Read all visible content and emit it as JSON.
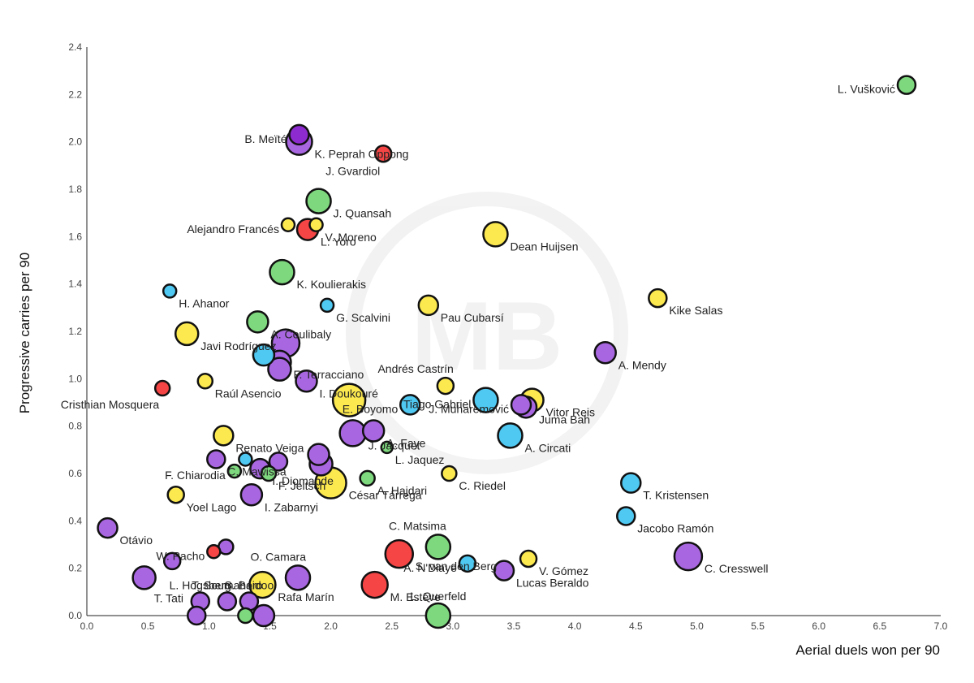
{
  "chart_data": {
    "type": "scatter",
    "xlabel": "Aerial duels won per 90",
    "ylabel": "Progressive carries per 90",
    "xlim": [
      0,
      7
    ],
    "ylim": [
      0,
      2.4
    ],
    "xticks": [
      "0.0",
      "0.5",
      "1.0",
      "1.5",
      "2.0",
      "2.5",
      "3.0",
      "3.5",
      "4.0",
      "4.5",
      "5.0",
      "5.5",
      "6.0",
      "6.5",
      "7.0"
    ],
    "yticks": [
      "0.0",
      "0.2",
      "0.4",
      "0.6",
      "0.8",
      "1.0",
      "1.2",
      "1.4",
      "1.6",
      "1.8",
      "2.0",
      "2.2",
      "2.4"
    ],
    "grid": false,
    "watermark": "MB",
    "colors": {
      "green": "#7ed87e",
      "purple": "#a867e0",
      "yellow": "#fce94f",
      "blue": "#4fc8f2",
      "red": "#f54545",
      "darkpurple": "#8e2bd0"
    },
    "points": [
      {
        "name": "L. Vušković",
        "x": 6.72,
        "y": 2.24,
        "size": 11,
        "color": "green",
        "label_pos": "left"
      },
      {
        "name": "B. Meïté",
        "x": 1.74,
        "y": 2.03,
        "size": 12,
        "color": "darkpurple",
        "label_pos": "left"
      },
      {
        "name": "K. Peprah Oppong",
        "x": 1.74,
        "y": 2.0,
        "size": 16,
        "color": "purple",
        "label_pos": "right"
      },
      {
        "name": "J. Gvardiol",
        "x": 2.43,
        "y": 1.95,
        "size": 10,
        "color": "red",
        "label_pos": "below-left"
      },
      {
        "name": "J. Quansah",
        "x": 1.9,
        "y": 1.75,
        "size": 15,
        "color": "green",
        "label_pos": "right"
      },
      {
        "name": "Alejandro Francés",
        "x": 1.65,
        "y": 1.65,
        "size": 8,
        "color": "yellow",
        "label_pos": "left"
      },
      {
        "name": "V. Moreno",
        "x": 1.88,
        "y": 1.65,
        "size": 8,
        "color": "yellow",
        "label_pos": "right"
      },
      {
        "name": "L. Yoro",
        "x": 1.81,
        "y": 1.63,
        "size": 13,
        "color": "red",
        "label_pos": "right"
      },
      {
        "name": "Dean Huijsen",
        "x": 3.35,
        "y": 1.61,
        "size": 15,
        "color": "yellow",
        "label_pos": "right"
      },
      {
        "name": "K. Koulierakis",
        "x": 1.6,
        "y": 1.45,
        "size": 15,
        "color": "green",
        "label_pos": "right"
      },
      {
        "name": "H. Ahanor",
        "x": 0.68,
        "y": 1.37,
        "size": 8,
        "color": "blue",
        "label_pos": "right"
      },
      {
        "name": "Kike Salas",
        "x": 4.68,
        "y": 1.34,
        "size": 11,
        "color": "yellow",
        "label_pos": "right"
      },
      {
        "name": "G. Scalvini",
        "x": 1.97,
        "y": 1.31,
        "size": 8,
        "color": "blue",
        "label_pos": "right"
      },
      {
        "name": "Pau Cubarsí",
        "x": 2.8,
        "y": 1.31,
        "size": 12,
        "color": "yellow",
        "label_pos": "right"
      },
      {
        "name": "A. Coulibaly",
        "x": 1.4,
        "y": 1.24,
        "size": 13,
        "color": "green",
        "label_pos": "right"
      },
      {
        "name": "Javi Rodríguez",
        "x": 0.82,
        "y": 1.19,
        "size": 14,
        "color": "yellow",
        "label_pos": "right"
      },
      {
        "name": "",
        "x": 1.63,
        "y": 1.15,
        "size": 17,
        "color": "purple",
        "label_pos": "none"
      },
      {
        "name": "",
        "x": 1.45,
        "y": 1.1,
        "size": 13,
        "color": "blue",
        "label_pos": "none"
      },
      {
        "name": "A. Mendy",
        "x": 4.25,
        "y": 1.11,
        "size": 13,
        "color": "purple",
        "label_pos": "right"
      },
      {
        "name": "F. Terracciano",
        "x": 1.58,
        "y": 1.07,
        "size": 14,
        "color": "purple",
        "label_pos": "right"
      },
      {
        "name": "",
        "x": 1.58,
        "y": 1.04,
        "size": 14,
        "color": "purple",
        "label_pos": "none"
      },
      {
        "name": "Raúl Asencio",
        "x": 0.97,
        "y": 0.99,
        "size": 9,
        "color": "yellow",
        "label_pos": "right"
      },
      {
        "name": "I. Doukouré",
        "x": 1.8,
        "y": 0.99,
        "size": 13,
        "color": "purple",
        "label_pos": "right"
      },
      {
        "name": "Andrés Castrín",
        "x": 2.94,
        "y": 0.97,
        "size": 10,
        "color": "yellow",
        "label_pos": "above-left"
      },
      {
        "name": "Cristhian Mosquera",
        "x": 0.62,
        "y": 0.96,
        "size": 9,
        "color": "red",
        "label_pos": "below-left"
      },
      {
        "name": "",
        "x": 2.15,
        "y": 0.91,
        "size": 20,
        "color": "yellow",
        "label_pos": "none"
      },
      {
        "name": "Tiago Gabriel",
        "x": 3.27,
        "y": 0.91,
        "size": 15,
        "color": "blue",
        "label_pos": "left"
      },
      {
        "name": "Vitor Reis",
        "x": 3.65,
        "y": 0.91,
        "size": 14,
        "color": "yellow",
        "label_pos": "right"
      },
      {
        "name": "E. Boyomo",
        "x": 2.65,
        "y": 0.89,
        "size": 12,
        "color": "blue",
        "label_pos": "left"
      },
      {
        "name": "J. Muharemović",
        "x": 3.56,
        "y": 0.89,
        "size": 12,
        "color": "purple",
        "label_pos": "left"
      },
      {
        "name": "Juma Bah",
        "x": 3.6,
        "y": 0.88,
        "size": 13,
        "color": "purple",
        "label_pos": "right"
      },
      {
        "name": "A. Circati",
        "x": 3.47,
        "y": 0.76,
        "size": 15,
        "color": "blue",
        "label_pos": "right"
      },
      {
        "name": "Renato Veiga",
        "x": 1.12,
        "y": 0.76,
        "size": 12,
        "color": "yellow",
        "label_pos": "right"
      },
      {
        "name": "A. Faye",
        "x": 2.35,
        "y": 0.78,
        "size": 13,
        "color": "purple",
        "label_pos": "right"
      },
      {
        "name": "J. Jacquet",
        "x": 2.18,
        "y": 0.77,
        "size": 16,
        "color": "purple",
        "label_pos": "right"
      },
      {
        "name": "L. Jaquez",
        "x": 2.46,
        "y": 0.71,
        "size": 7,
        "color": "green",
        "label_pos": "right"
      },
      {
        "name": "",
        "x": 1.9,
        "y": 0.68,
        "size": 13,
        "color": "purple",
        "label_pos": "none"
      },
      {
        "name": "C. Mawissa",
        "x": 1.06,
        "y": 0.66,
        "size": 11,
        "color": "purple",
        "label_pos": "right"
      },
      {
        "name": "",
        "x": 1.3,
        "y": 0.66,
        "size": 8,
        "color": "blue",
        "label_pos": "none"
      },
      {
        "name": "",
        "x": 1.57,
        "y": 0.65,
        "size": 11,
        "color": "purple",
        "label_pos": "none"
      },
      {
        "name": "",
        "x": 1.92,
        "y": 0.64,
        "size": 14,
        "color": "purple",
        "label_pos": "none"
      },
      {
        "name": "I. Diomande",
        "x": 1.42,
        "y": 0.62,
        "size": 12,
        "color": "purple",
        "label_pos": "right"
      },
      {
        "name": "F. Chiarodia",
        "x": 1.21,
        "y": 0.61,
        "size": 8,
        "color": "green",
        "label_pos": "left"
      },
      {
        "name": "F. Jeltsch",
        "x": 1.49,
        "y": 0.6,
        "size": 9,
        "color": "green",
        "label_pos": "right"
      },
      {
        "name": "C. Riedel",
        "x": 2.97,
        "y": 0.6,
        "size": 9,
        "color": "yellow",
        "label_pos": "right"
      },
      {
        "name": "A. Hajdari",
        "x": 2.3,
        "y": 0.58,
        "size": 9,
        "color": "green",
        "label_pos": "right"
      },
      {
        "name": "César Tárrega",
        "x": 2.0,
        "y": 0.56,
        "size": 19,
        "color": "yellow",
        "label_pos": "right"
      },
      {
        "name": "T. Kristensen",
        "x": 4.46,
        "y": 0.56,
        "size": 12,
        "color": "blue",
        "label_pos": "right"
      },
      {
        "name": "Yoel Lago",
        "x": 0.73,
        "y": 0.51,
        "size": 10,
        "color": "yellow",
        "label_pos": "right"
      },
      {
        "name": "I. Zabarnyi",
        "x": 1.35,
        "y": 0.51,
        "size": 13,
        "color": "purple",
        "label_pos": "right"
      },
      {
        "name": "Jacobo Ramón",
        "x": 4.42,
        "y": 0.42,
        "size": 11,
        "color": "blue",
        "label_pos": "right"
      },
      {
        "name": "Otávio",
        "x": 0.17,
        "y": 0.37,
        "size": 12,
        "color": "purple",
        "label_pos": "right"
      },
      {
        "name": "C. Matsima",
        "x": 2.88,
        "y": 0.29,
        "size": 15,
        "color": "green",
        "label_pos": "above-left"
      },
      {
        "name": "",
        "x": 1.14,
        "y": 0.29,
        "size": 9,
        "color": "purple",
        "label_pos": "none"
      },
      {
        "name": "W. Pacho",
        "x": 1.04,
        "y": 0.27,
        "size": 8,
        "color": "red",
        "label_pos": "left"
      },
      {
        "name": "S. van den Berg",
        "x": 2.56,
        "y": 0.26,
        "size": 17,
        "color": "red",
        "label_pos": "right"
      },
      {
        "name": "C. Cresswell",
        "x": 4.93,
        "y": 0.25,
        "size": 17,
        "color": "purple",
        "label_pos": "right"
      },
      {
        "name": "V. Gómez",
        "x": 3.62,
        "y": 0.24,
        "size": 10,
        "color": "yellow",
        "label_pos": "right"
      },
      {
        "name": "",
        "x": 0.7,
        "y": 0.23,
        "size": 10,
        "color": "purple",
        "label_pos": "none"
      },
      {
        "name": "A. N'Diaye",
        "x": 3.12,
        "y": 0.22,
        "size": 10,
        "color": "blue",
        "label_pos": "left"
      },
      {
        "name": "Lucas Beraldo",
        "x": 3.42,
        "y": 0.19,
        "size": 12,
        "color": "purple",
        "label_pos": "right"
      },
      {
        "name": "T. Tati",
        "x": 0.47,
        "y": 0.16,
        "size": 14,
        "color": "purple",
        "label_pos": "below-right"
      },
      {
        "name": "O. Camara",
        "x": 1.73,
        "y": 0.16,
        "size": 15,
        "color": "purple",
        "label_pos": "above-left"
      },
      {
        "name": "Rafa Marín",
        "x": 1.44,
        "y": 0.13,
        "size": 16,
        "color": "yellow",
        "label_pos": "right"
      },
      {
        "name": "M. Estève",
        "x": 2.36,
        "y": 0.13,
        "size": 16,
        "color": "red",
        "label_pos": "right"
      },
      {
        "name": "L. Hogsberg",
        "x": 0.93,
        "y": 0.06,
        "size": 11,
        "color": "purple",
        "label_pos": "above"
      },
      {
        "name": "T. Soumahoro",
        "x": 1.15,
        "y": 0.06,
        "size": 11,
        "color": "purple",
        "label_pos": "above"
      },
      {
        "name": "S. Baidoo",
        "x": 1.33,
        "y": 0.06,
        "size": 11,
        "color": "purple",
        "label_pos": "above"
      },
      {
        "name": "",
        "x": 0.9,
        "y": 0.0,
        "size": 11,
        "color": "purple",
        "label_pos": "none"
      },
      {
        "name": "",
        "x": 1.3,
        "y": 0.0,
        "size": 9,
        "color": "green",
        "label_pos": "none"
      },
      {
        "name": "",
        "x": 1.45,
        "y": 0.0,
        "size": 13,
        "color": "purple",
        "label_pos": "none"
      },
      {
        "name": "L. Querfeld",
        "x": 2.88,
        "y": 0.0,
        "size": 15,
        "color": "green",
        "label_pos": "above"
      }
    ]
  }
}
